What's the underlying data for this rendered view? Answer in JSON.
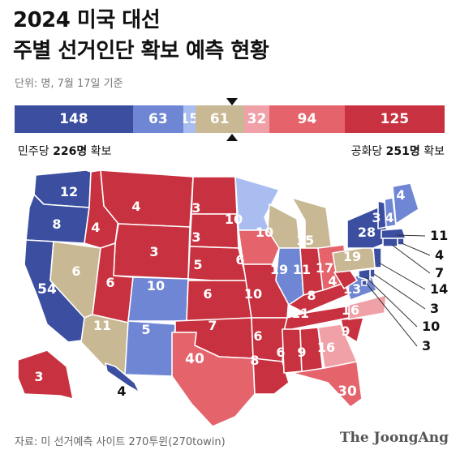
{
  "title_line1": "2024 미국 대선",
  "title_line2": "주별 선거인단 확보 예측 현황",
  "unit_text": "단위: 명, 7월 17일 기준",
  "colors": {
    "solid_d": "#3b4ea0",
    "likely_d": "#6f86d4",
    "lean_d": "#a9bdf0",
    "tossup": "#c8b894",
    "lean_r": "#f0a1a8",
    "likely_r": "#e5636b",
    "solid_r": "#c8313f"
  },
  "bar": [
    {
      "key": "solid_d",
      "value": 148,
      "label": "148"
    },
    {
      "key": "likely_d",
      "value": 63,
      "label": "63"
    },
    {
      "key": "lean_d",
      "value": 15,
      "label": "15"
    },
    {
      "key": "tossup",
      "value": 61,
      "label": "61"
    },
    {
      "key": "lean_r",
      "value": 32,
      "label": "32"
    },
    {
      "key": "likely_r",
      "value": 94,
      "label": "94"
    },
    {
      "key": "solid_r",
      "value": 125,
      "label": "125"
    }
  ],
  "dem": {
    "party": "민주당",
    "count": "226명",
    "suffix": "확보"
  },
  "rep": {
    "party": "공화당",
    "count": "251명",
    "suffix": "확보"
  },
  "states": [
    {
      "id": "WA",
      "ev": "12",
      "cat": "solid_d"
    },
    {
      "id": "OR",
      "ev": "8",
      "cat": "solid_d"
    },
    {
      "id": "CA",
      "ev": "54",
      "cat": "solid_d"
    },
    {
      "id": "NV",
      "ev": "6",
      "cat": "tossup"
    },
    {
      "id": "ID",
      "ev": "4",
      "cat": "solid_r"
    },
    {
      "id": "MT",
      "ev": "4",
      "cat": "solid_r"
    },
    {
      "id": "WY",
      "ev": "3",
      "cat": "solid_r"
    },
    {
      "id": "UT",
      "ev": "6",
      "cat": "solid_r"
    },
    {
      "id": "AZ",
      "ev": "11",
      "cat": "tossup"
    },
    {
      "id": "CO",
      "ev": "10",
      "cat": "likely_d"
    },
    {
      "id": "NM",
      "ev": "5",
      "cat": "likely_d"
    },
    {
      "id": "ND",
      "ev": "3",
      "cat": "solid_r"
    },
    {
      "id": "SD",
      "ev": "3",
      "cat": "solid_r"
    },
    {
      "id": "NE",
      "ev": "5",
      "cat": "solid_r"
    },
    {
      "id": "KS",
      "ev": "6",
      "cat": "solid_r"
    },
    {
      "id": "OK",
      "ev": "7",
      "cat": "solid_r"
    },
    {
      "id": "TX",
      "ev": "40",
      "cat": "likely_r"
    },
    {
      "id": "MN",
      "ev": "10",
      "cat": "lean_d"
    },
    {
      "id": "IA",
      "ev": "6",
      "cat": "likely_r"
    },
    {
      "id": "MO",
      "ev": "10",
      "cat": "solid_r"
    },
    {
      "id": "AR",
      "ev": "6",
      "cat": "solid_r"
    },
    {
      "id": "LA",
      "ev": "8",
      "cat": "solid_r"
    },
    {
      "id": "WI",
      "ev": "10",
      "cat": "tossup"
    },
    {
      "id": "IL",
      "ev": "19",
      "cat": "likely_d"
    },
    {
      "id": "MI",
      "ev": "15",
      "cat": "tossup"
    },
    {
      "id": "IN",
      "ev": "11",
      "cat": "solid_r"
    },
    {
      "id": "OH",
      "ev": "17",
      "cat": "likely_r"
    },
    {
      "id": "KY",
      "ev": "8",
      "cat": "solid_r"
    },
    {
      "id": "TN",
      "ev": "11",
      "cat": "solid_r"
    },
    {
      "id": "MS",
      "ev": "6",
      "cat": "solid_r"
    },
    {
      "id": "AL",
      "ev": "9",
      "cat": "solid_r"
    },
    {
      "id": "GA",
      "ev": "16",
      "cat": "lean_r"
    },
    {
      "id": "FL",
      "ev": "30",
      "cat": "likely_r"
    },
    {
      "id": "SC",
      "ev": "9",
      "cat": "solid_r"
    },
    {
      "id": "NC",
      "ev": "16",
      "cat": "lean_r"
    },
    {
      "id": "VA",
      "ev": "13",
      "cat": "likely_d"
    },
    {
      "id": "WV",
      "ev": "4",
      "cat": "solid_r"
    },
    {
      "id": "PA",
      "ev": "19",
      "cat": "tossup"
    },
    {
      "id": "NY",
      "ev": "28",
      "cat": "solid_d"
    },
    {
      "id": "VT",
      "ev": "3",
      "cat": "solid_d"
    },
    {
      "id": "NH",
      "ev": "4",
      "cat": "likely_d"
    },
    {
      "id": "ME",
      "ev": "4",
      "cat": "likely_d"
    },
    {
      "id": "MA",
      "ev": "11",
      "cat": "solid_d"
    },
    {
      "id": "RI",
      "ev": "4",
      "cat": "solid_d"
    },
    {
      "id": "CT",
      "ev": "7",
      "cat": "solid_d"
    },
    {
      "id": "NJ",
      "ev": "14",
      "cat": "solid_d"
    },
    {
      "id": "DE",
      "ev": "3",
      "cat": "solid_d"
    },
    {
      "id": "MD",
      "ev": "10",
      "cat": "solid_d"
    },
    {
      "id": "DC",
      "ev": "3",
      "cat": "solid_d"
    },
    {
      "id": "AK",
      "ev": "3",
      "cat": "solid_r"
    },
    {
      "id": "HI",
      "ev": "4",
      "cat": "solid_d"
    }
  ],
  "source": "자료: 미 선거예측 사이트 270투윈(270towin)",
  "logo": "The JoongAng"
}
